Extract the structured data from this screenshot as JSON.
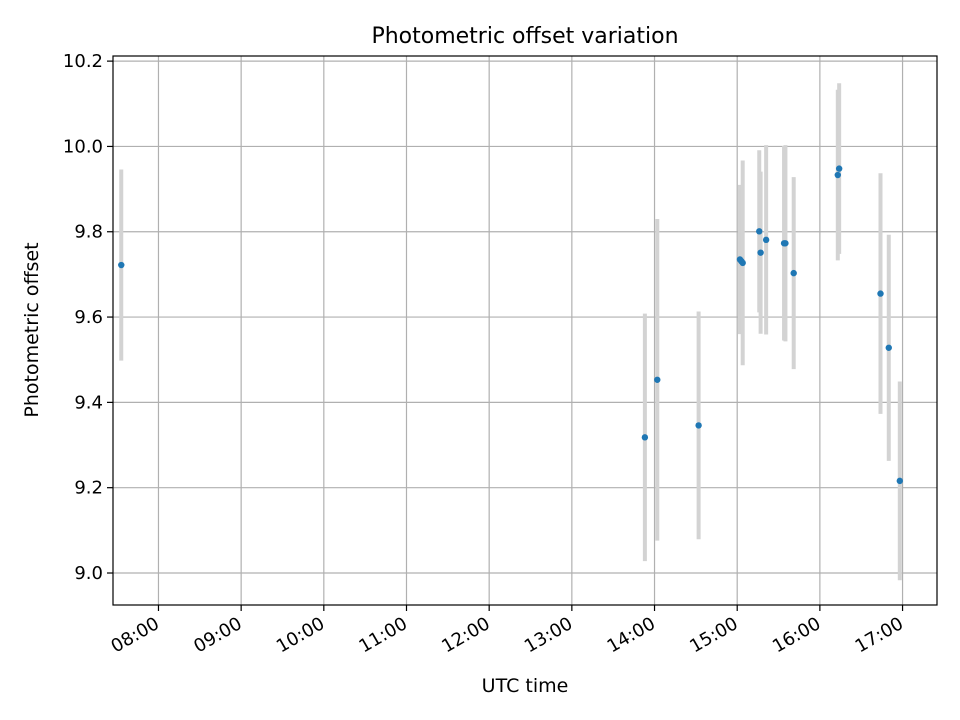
{
  "chart_data": {
    "type": "scatter",
    "title": "Photometric offset variation",
    "xlabel": "UTC time",
    "ylabel": "Photometric offset",
    "x_unit": "UTC time (HH:MM)",
    "xlim": [
      "07:27",
      "17:25"
    ],
    "ylim": [
      8.925,
      10.212
    ],
    "x_ticks": [
      "08:00",
      "09:00",
      "10:00",
      "11:00",
      "12:00",
      "13:00",
      "14:00",
      "15:00",
      "16:00",
      "17:00"
    ],
    "y_ticks": [
      "9.0",
      "9.2",
      "9.4",
      "9.6",
      "9.8",
      "10.0",
      "10.2"
    ],
    "grid": true,
    "legend": "none",
    "colors": {
      "point": "#1f77b4",
      "errorbar": "#d3d3d3",
      "grid": "#b0b0b0"
    },
    "points": [
      {
        "x": "07:33",
        "y": 9.722,
        "err": 0.224
      },
      {
        "x": "13:53",
        "y": 9.318,
        "err": 0.29
      },
      {
        "x": "14:02",
        "y": 9.453,
        "err": 0.377
      },
      {
        "x": "14:32",
        "y": 9.346,
        "err": 0.267
      },
      {
        "x": "15:02",
        "y": 9.735,
        "err": 0.175
      },
      {
        "x": "15:03",
        "y": 9.731,
        "err": 0.17
      },
      {
        "x": "15:04",
        "y": 9.727,
        "err": 0.24
      },
      {
        "x": "15:16",
        "y": 9.801,
        "err": 0.19
      },
      {
        "x": "15:17",
        "y": 9.751,
        "err": 0.19
      },
      {
        "x": "15:21",
        "y": 9.781,
        "err": 0.222
      },
      {
        "x": "15:34",
        "y": 9.773,
        "err": 0.228
      },
      {
        "x": "15:35",
        "y": 9.773,
        "err": 0.23
      },
      {
        "x": "15:41",
        "y": 9.703,
        "err": 0.225
      },
      {
        "x": "16:13",
        "y": 9.933,
        "err": 0.2
      },
      {
        "x": "16:14",
        "y": 9.948,
        "err": 0.2
      },
      {
        "x": "16:44",
        "y": 9.655,
        "err": 0.282
      },
      {
        "x": "16:50",
        "y": 9.528,
        "err": 0.265
      },
      {
        "x": "16:58",
        "y": 9.216,
        "err": 0.233
      }
    ]
  }
}
